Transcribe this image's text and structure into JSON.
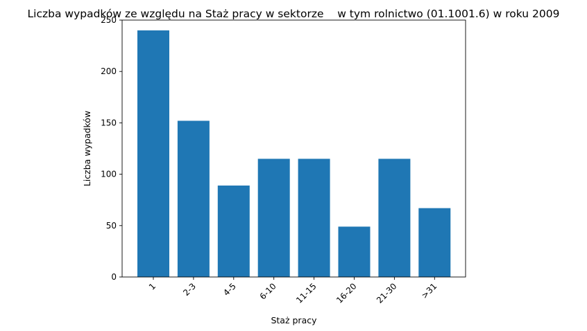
{
  "colors": {
    "bar": "#1f77b4",
    "axis": "#000000",
    "background": "#ffffff"
  },
  "chart_data": {
    "type": "bar",
    "title": "Liczba wypadków ze względu na Staż pracy w sektorze    w tym rolnictwo (01.1001.6) w roku 2009",
    "xlabel": "Staż pracy",
    "ylabel": "Liczba wypadków",
    "categories": [
      "1",
      "2-3",
      "4-5",
      "6-10",
      "11-15",
      "16-20",
      "21-30",
      ">31"
    ],
    "values": [
      240,
      152,
      89,
      115,
      115,
      49,
      115,
      67
    ],
    "ylim": [
      0,
      250
    ],
    "yticks": [
      0,
      50,
      100,
      150,
      200,
      250
    ],
    "xtick_rotation": 45,
    "grid": false,
    "legend": "none"
  }
}
